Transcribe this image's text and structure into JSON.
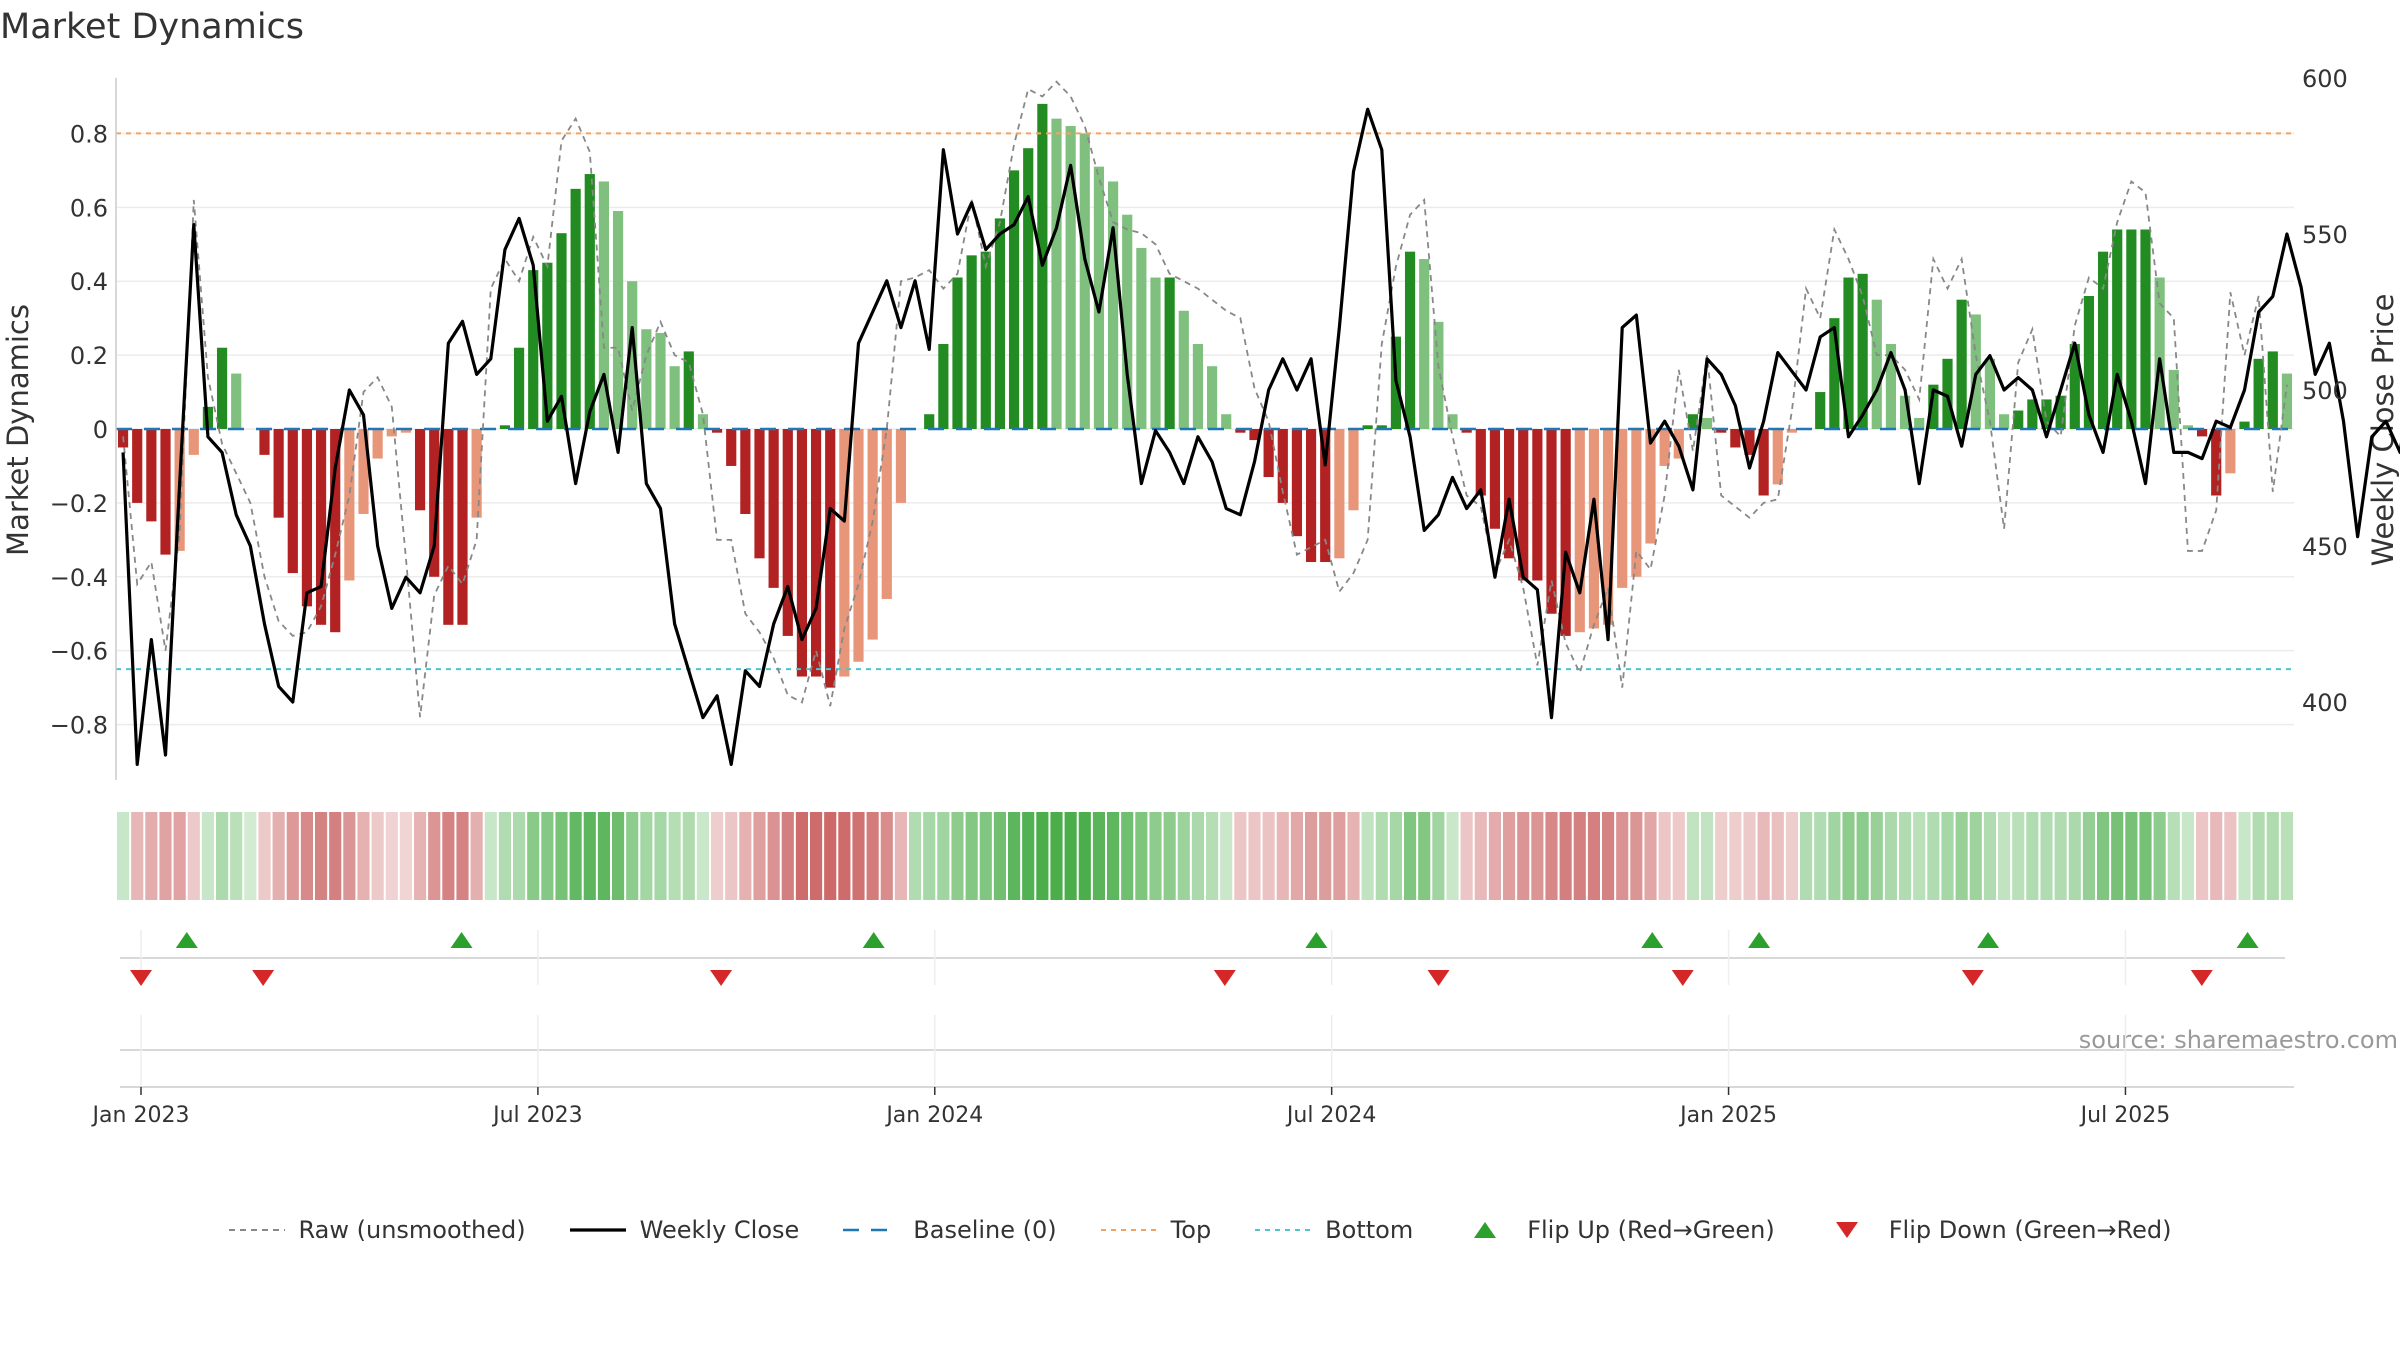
{
  "chart_data": {
    "type": "bar",
    "title": "Market Dynamics",
    "ylabel": "Market Dynamics",
    "y2label": "Weekly Close Price",
    "ylim": [
      -0.95,
      0.95
    ],
    "y2lim": [
      375,
      600
    ],
    "yticks": [
      -0.8,
      -0.6,
      -0.4,
      -0.2,
      0,
      0.2,
      0.4,
      0.6,
      0.8
    ],
    "yticklabels": [
      "−0.8",
      "−0.6",
      "−0.4",
      "−0.2",
      "0",
      "0.2",
      "0.4",
      "0.6",
      "0.8"
    ],
    "y2ticks": [
      400,
      450,
      500,
      550,
      600
    ],
    "xticks": [
      {
        "week": 0,
        "label": "Jan 2023"
      },
      {
        "week": 26,
        "label": "Jul 2023"
      },
      {
        "week": 52,
        "label": "Jan 2024"
      },
      {
        "week": 78,
        "label": "Jul 2024"
      },
      {
        "week": 104,
        "label": "Jan 2025"
      },
      {
        "week": 130,
        "label": "Jul 2025"
      }
    ],
    "top_level": 0.8,
    "bottom_level": -0.65,
    "baseline": 0,
    "colors": {
      "up_strong": "#228b22",
      "up_weak": "#7fc07f",
      "down_strong": "#b22222",
      "down_weak": "#e8967a",
      "close": "#000000",
      "raw": "#888888",
      "baseline": "#1f77b4",
      "top": "#f4a261",
      "bottom": "#4fc3d0",
      "flip_up": "#2ca02c",
      "flip_down": "#d62728"
    },
    "series": [
      {
        "name": "Market Dynamics",
        "values": [
          -0.05,
          -0.2,
          -0.25,
          -0.34,
          -0.33,
          -0.07,
          0.06,
          0.22,
          0.15,
          0.0,
          -0.07,
          -0.24,
          -0.39,
          -0.48,
          -0.53,
          -0.55,
          -0.41,
          -0.23,
          -0.08,
          -0.02,
          -0.01,
          -0.22,
          -0.4,
          -0.53,
          -0.53,
          -0.24,
          0.0,
          0.01,
          0.22,
          0.43,
          0.45,
          0.53,
          0.65,
          0.69,
          0.67,
          0.59,
          0.4,
          0.27,
          0.26,
          0.17,
          0.21,
          0.04,
          -0.01,
          -0.1,
          -0.23,
          -0.35,
          -0.43,
          -0.56,
          -0.67,
          -0.67,
          -0.7,
          -0.67,
          -0.63,
          -0.57,
          -0.46,
          -0.2,
          0.0,
          0.04,
          0.23,
          0.41,
          0.47,
          0.48,
          0.57,
          0.7,
          0.76,
          0.88,
          0.84,
          0.82,
          0.8,
          0.71,
          0.67,
          0.58,
          0.49,
          0.41,
          0.41,
          0.32,
          0.23,
          0.17,
          0.04,
          -0.01,
          -0.03,
          -0.13,
          -0.2,
          -0.29,
          -0.36,
          -0.36,
          -0.35,
          -0.22,
          0.01,
          0.01,
          0.25,
          0.48,
          0.46,
          0.29,
          0.04,
          -0.01,
          -0.18,
          -0.27,
          -0.35,
          -0.41,
          -0.41,
          -0.5,
          -0.56,
          -0.55,
          -0.54,
          -0.53,
          -0.43,
          -0.4,
          -0.31,
          -0.1,
          -0.08,
          0.04,
          0.03,
          -0.01,
          -0.05,
          -0.07,
          -0.18,
          -0.15,
          -0.01,
          0.0,
          0.1,
          0.3,
          0.41,
          0.42,
          0.35,
          0.23,
          0.09,
          0.03,
          0.12,
          0.19,
          0.35,
          0.31,
          0.19,
          0.04,
          0.05,
          0.08,
          0.08,
          0.09,
          0.23,
          0.36,
          0.48,
          0.54,
          0.54,
          0.54,
          0.41,
          0.16,
          0.01,
          -0.02,
          -0.18,
          -0.12,
          0.02,
          0.19,
          0.21,
          0.15
        ]
      },
      {
        "name": "Raw (unsmoothed)",
        "values": [
          -0.02,
          -0.42,
          -0.36,
          -0.6,
          -0.28,
          0.62,
          0.14,
          -0.04,
          -0.12,
          -0.2,
          -0.4,
          -0.52,
          -0.56,
          -0.55,
          -0.48,
          -0.34,
          -0.18,
          0.1,
          0.14,
          0.06,
          -0.35,
          -0.78,
          -0.45,
          -0.37,
          -0.42,
          -0.3,
          0.38,
          0.46,
          0.4,
          0.52,
          0.44,
          0.78,
          0.84,
          0.75,
          0.22,
          0.22,
          0.05,
          0.2,
          0.29,
          0.2,
          0.18,
          0.04,
          -0.3,
          -0.3,
          -0.5,
          -0.55,
          -0.62,
          -0.72,
          -0.74,
          -0.6,
          -0.75,
          -0.54,
          -0.42,
          -0.25,
          0.0,
          0.4,
          0.41,
          0.43,
          0.38,
          0.42,
          0.62,
          0.44,
          0.56,
          0.77,
          0.92,
          0.9,
          0.94,
          0.9,
          0.82,
          0.68,
          0.56,
          0.54,
          0.53,
          0.5,
          0.42,
          0.4,
          0.38,
          0.35,
          0.32,
          0.3,
          0.11,
          0.02,
          -0.17,
          -0.34,
          -0.32,
          -0.3,
          -0.44,
          -0.39,
          -0.3,
          0.23,
          0.44,
          0.58,
          0.62,
          0.17,
          -0.02,
          -0.18,
          -0.21,
          -0.39,
          -0.3,
          -0.43,
          -0.64,
          -0.41,
          -0.58,
          -0.66,
          -0.53,
          -0.43,
          -0.7,
          -0.33,
          -0.38,
          -0.18,
          0.16,
          -0.06,
          0.2,
          -0.18,
          -0.21,
          -0.24,
          -0.2,
          -0.19,
          0.05,
          0.38,
          0.3,
          0.54,
          0.46,
          0.36,
          0.2,
          0.2,
          0.16,
          0.08,
          0.46,
          0.38,
          0.46,
          0.2,
          0.02,
          -0.27,
          0.18,
          0.27,
          0.02,
          -0.02,
          0.28,
          0.41,
          0.38,
          0.56,
          0.67,
          0.64,
          0.34,
          0.3,
          -0.33,
          -0.33,
          -0.22,
          0.37,
          0.2,
          0.36,
          -0.17,
          0.12
        ]
      },
      {
        "name": "Weekly Close",
        "values": [
          480,
          380,
          420,
          383,
          470,
          553,
          485,
          480,
          460,
          450,
          425,
          405,
          400,
          435,
          437,
          475,
          500,
          492,
          450,
          430,
          440,
          435,
          450,
          515,
          522,
          505,
          510,
          545,
          555,
          540,
          490,
          498,
          470,
          493,
          505,
          480,
          520,
          470,
          462,
          425,
          410,
          395,
          402,
          380,
          410,
          405,
          425,
          437,
          420,
          430,
          462,
          458,
          515,
          525,
          535,
          520,
          535,
          513,
          577,
          550,
          560,
          545,
          550,
          553,
          562,
          540,
          552,
          572,
          542,
          525,
          552,
          505,
          470,
          487,
          480,
          470,
          485,
          477,
          462,
          460,
          477,
          500,
          510,
          500,
          510,
          476,
          520,
          570,
          590,
          577,
          503,
          485,
          455,
          460,
          472,
          462,
          468,
          440,
          465,
          440,
          436,
          395,
          448,
          435,
          465,
          420,
          520,
          524,
          483,
          490,
          482,
          468,
          510,
          505,
          495,
          475,
          490,
          512,
          506,
          500,
          517,
          520,
          485,
          492,
          500,
          512,
          500,
          470,
          500,
          498,
          482,
          505,
          511,
          500,
          504,
          500,
          485,
          500,
          515,
          492,
          480,
          505,
          490,
          470,
          510,
          480,
          480,
          478,
          490,
          488,
          500,
          525,
          530,
          550,
          533,
          505,
          515,
          490,
          453,
          485,
          490,
          480,
          510,
          515,
          525,
          483,
          508
        ]
      }
    ],
    "heatmap_values": [
      0.05,
      -0.2,
      -0.25,
      -0.34,
      -0.33,
      -0.07,
      0.06,
      0.22,
      0.15,
      0.0,
      -0.07,
      -0.24,
      -0.39,
      -0.48,
      -0.53,
      -0.55,
      -0.41,
      -0.23,
      -0.08,
      -0.02,
      -0.01,
      -0.22,
      -0.4,
      -0.53,
      -0.53,
      -0.24,
      0.05,
      0.2,
      0.22,
      0.43,
      0.45,
      0.53,
      0.65,
      0.69,
      0.67,
      0.59,
      0.4,
      0.27,
      0.26,
      0.17,
      0.21,
      0.04,
      -0.05,
      -0.1,
      -0.23,
      -0.35,
      -0.43,
      -0.56,
      -0.67,
      -0.67,
      -0.7,
      -0.67,
      -0.63,
      -0.57,
      -0.46,
      -0.2,
      0.2,
      0.25,
      0.3,
      0.41,
      0.47,
      0.48,
      0.57,
      0.7,
      0.76,
      0.88,
      0.84,
      0.82,
      0.8,
      0.71,
      0.67,
      0.58,
      0.49,
      0.41,
      0.41,
      0.32,
      0.23,
      0.17,
      0.04,
      -0.1,
      -0.1,
      -0.13,
      -0.2,
      -0.29,
      -0.36,
      -0.36,
      -0.35,
      -0.22,
      0.1,
      0.2,
      0.25,
      0.48,
      0.46,
      0.29,
      0.04,
      -0.1,
      -0.18,
      -0.27,
      -0.35,
      -0.41,
      -0.41,
      -0.5,
      -0.56,
      -0.55,
      -0.54,
      -0.53,
      -0.43,
      -0.4,
      -0.31,
      -0.1,
      -0.08,
      0.1,
      0.1,
      -0.05,
      -0.05,
      -0.07,
      -0.18,
      -0.15,
      -0.05,
      0.2,
      0.2,
      0.3,
      0.41,
      0.42,
      0.35,
      0.23,
      0.2,
      0.15,
      0.2,
      0.25,
      0.35,
      0.31,
      0.19,
      0.1,
      0.15,
      0.2,
      0.2,
      0.2,
      0.23,
      0.36,
      0.48,
      0.54,
      0.54,
      0.54,
      0.41,
      0.16,
      0.05,
      -0.1,
      -0.18,
      -0.12,
      0.05,
      0.19,
      0.21,
      0.15
    ],
    "flip_up_weeks": [
      3,
      21,
      48,
      77,
      99,
      106,
      121,
      138
    ],
    "flip_down_weeks": [
      0,
      8,
      38,
      71,
      85,
      101,
      120,
      135
    ],
    "legend": [
      {
        "key": "raw",
        "label": "Raw (unsmoothed)"
      },
      {
        "key": "close",
        "label": "Weekly Close"
      },
      {
        "key": "baseline",
        "label": "Baseline (0)"
      },
      {
        "key": "top",
        "label": "Top"
      },
      {
        "key": "bottom",
        "label": "Bottom"
      },
      {
        "key": "flip_up",
        "label": "Flip Up (Red→Green)"
      },
      {
        "key": "flip_down",
        "label": "Flip Down (Green→Red)"
      }
    ],
    "source": "source: sharemaestro.com",
    "legend_position": "bottom-center"
  }
}
